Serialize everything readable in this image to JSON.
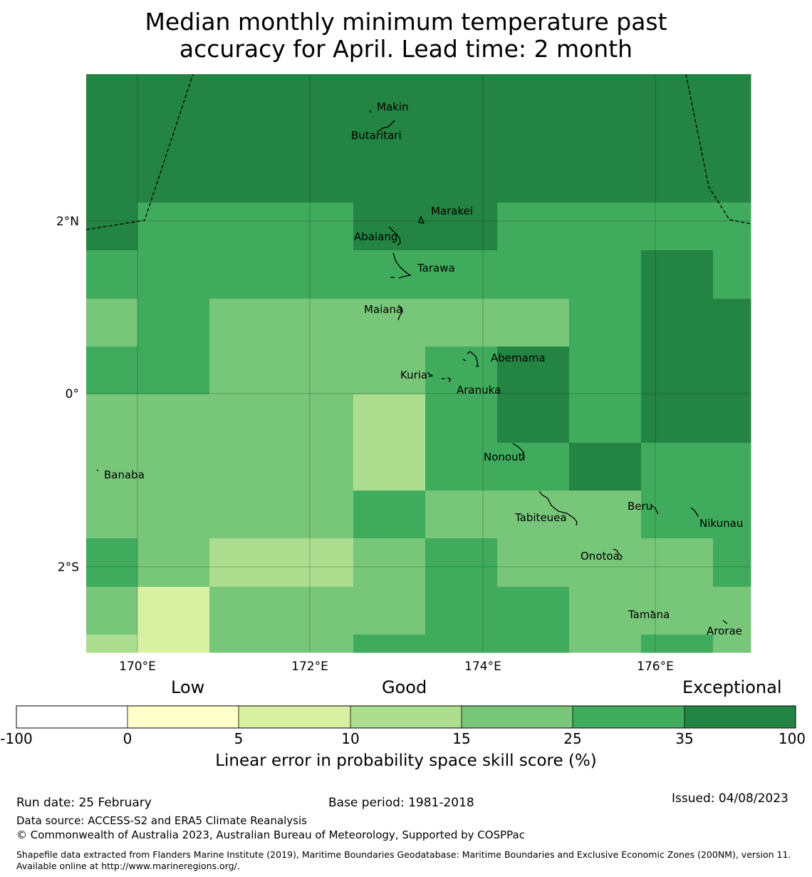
{
  "title_line1": "Median monthly minimum temperature past",
  "title_line2": "accuracy for April. Lead time: 2 month",
  "colors": {
    "c0": "#FFFFCC",
    "c5": "#D9F0A3",
    "c10": "#ADDD8E",
    "c15": "#78C679",
    "c25": "#41AB5D",
    "c35": "#238443",
    "cneg": "#FFFFFF"
  },
  "map": {
    "lat_labels": [
      "2°N",
      "0°",
      "2°S"
    ],
    "lon_labels": [
      "170°E",
      "172°E",
      "174°E",
      "176°E"
    ],
    "grid_values": [
      [
        35,
        35,
        35,
        35,
        35,
        35,
        35,
        35,
        35
      ],
      [
        35,
        35,
        35,
        35,
        35,
        35,
        35,
        35,
        35
      ],
      [
        35,
        25,
        25,
        35,
        35,
        25,
        25,
        25,
        25
      ],
      [
        25,
        25,
        25,
        25,
        25,
        25,
        25,
        35,
        25
      ],
      [
        15,
        25,
        15,
        15,
        15,
        15,
        25,
        35,
        35
      ],
      [
        25,
        25,
        15,
        15,
        25,
        35,
        25,
        35,
        35
      ],
      [
        15,
        15,
        15,
        10,
        25,
        35,
        25,
        35,
        35
      ],
      [
        15,
        15,
        15,
        10,
        25,
        25,
        35,
        25,
        25
      ],
      [
        15,
        15,
        15,
        25,
        15,
        15,
        15,
        25,
        25
      ],
      [
        25,
        15,
        10,
        15,
        25,
        15,
        15,
        15,
        25
      ],
      [
        15,
        5,
        15,
        15,
        25,
        25,
        15,
        15,
        15
      ],
      [
        10,
        5,
        15,
        25,
        25,
        25,
        15,
        25,
        15
      ]
    ],
    "islands": [
      {
        "name": "Makin"
      },
      {
        "name": "Butaritari"
      },
      {
        "name": "Marakei"
      },
      {
        "name": "Abaiang"
      },
      {
        "name": "Tarawa"
      },
      {
        "name": "Maiana"
      },
      {
        "name": "Abemama"
      },
      {
        "name": "Kuria"
      },
      {
        "name": "Aranuka"
      },
      {
        "name": "Nonouti"
      },
      {
        "name": "Banaba"
      },
      {
        "name": "Tabiteuea"
      },
      {
        "name": "Beru"
      },
      {
        "name": "Nikunau"
      },
      {
        "name": "Onotoa"
      },
      {
        "name": "Tamana"
      },
      {
        "name": "Arorae"
      }
    ]
  },
  "legend": {
    "categories": [
      "Low",
      "Good",
      "Exceptional"
    ],
    "ticks": [
      "-100",
      "0",
      "5",
      "10",
      "15",
      "25",
      "35",
      "100"
    ],
    "label": "Linear error in probability space skill score (%)"
  },
  "footer": {
    "run_date": "Run date: 25 February",
    "base_period": "Base period: 1981-2018",
    "issued": "Issued: 04/08/2023",
    "data_source": "Data source: ACCESS-S2 and ERA5 Climate Reanalysis",
    "copyright": "© Commonwealth of Australia 2023, Australian Bureau of Meteorology, Supported by COSPPac",
    "shapefile": "Shapefile data extracted from Flanders Marine Institute (2019), Maritime Boundaries Geodatabase: Maritime Boundaries and Exclusive Economic Zones (200NM), version 11. Available online at http://www.marineregions.org/."
  }
}
